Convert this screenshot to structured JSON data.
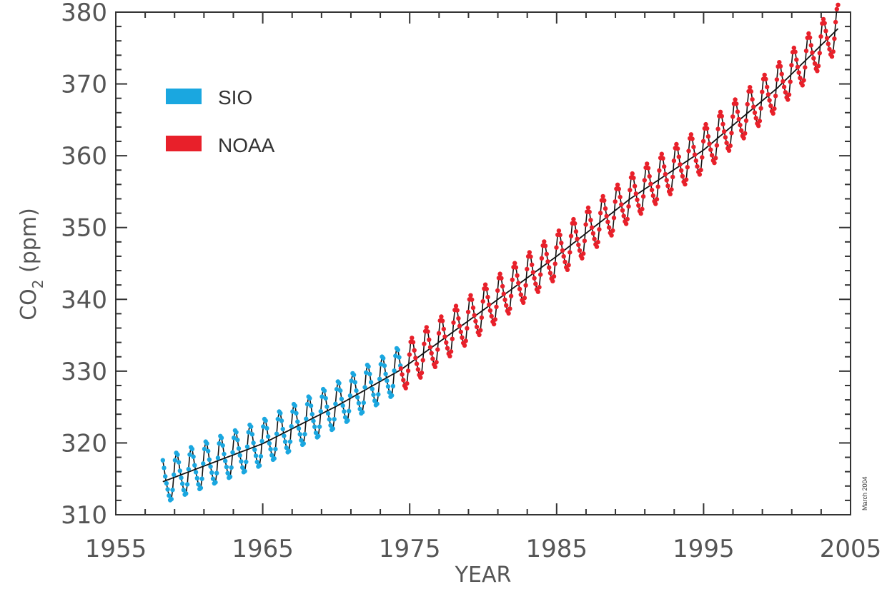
{
  "chart_data": {
    "type": "line",
    "title": "",
    "xlabel": "YEAR",
    "ylabel": "CO",
    "ylabel_subscript": "2",
    "ylabel_units": "(ppm)",
    "xlim": [
      1955,
      2005
    ],
    "ylim": [
      310,
      380
    ],
    "x_ticks": [
      1955,
      1965,
      1975,
      1985,
      1995,
      2005
    ],
    "y_ticks": [
      310,
      320,
      330,
      340,
      350,
      360,
      370,
      380
    ],
    "grid": false,
    "legend_position": "upper-left",
    "annotation": "March 2004",
    "series": [
      {
        "name": "SIO",
        "color": "#1aa7e0",
        "start_year": 1958.2,
        "end_year": 1974.4,
        "trend": {
          "points": [
            [
              1958.2,
              314.6
            ],
            [
              1965,
              319.9
            ],
            [
              1970,
              325.1
            ],
            [
              1974.4,
              330.2
            ]
          ]
        }
      },
      {
        "name": "NOAA",
        "color": "#e8202a",
        "start_year": 1974.4,
        "end_year": 2004.2,
        "trend": {
          "points": [
            [
              1974.4,
              330.2
            ],
            [
              1980,
              338.5
            ],
            [
              1985,
              346.0
            ],
            [
              1990,
              354.0
            ],
            [
              1995,
              360.8
            ],
            [
              2000,
              369.4
            ],
            [
              2004.2,
              377.8
            ]
          ]
        }
      }
    ],
    "seasonal_amplitude": 3.0,
    "smoothed_curve_color": "#111111"
  }
}
